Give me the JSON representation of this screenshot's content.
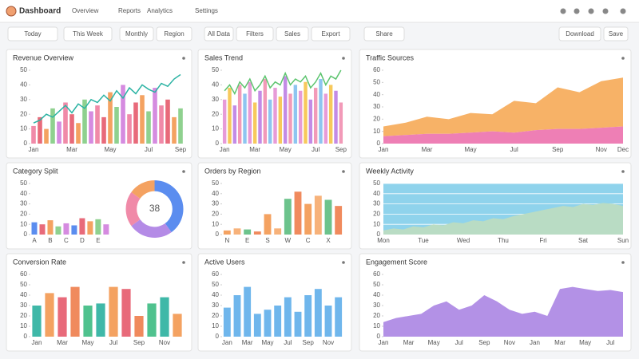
{
  "header": {
    "logo": "Dashboard",
    "nav": [
      "Overview",
      "Reports",
      "Analytics",
      "Settings"
    ]
  },
  "toolbar": {
    "buttons": [
      "Today",
      "This Week",
      "Monthly",
      "Region",
      "All Data",
      "Filters",
      "Sales",
      "Export",
      "Share"
    ],
    "right": [
      "Download",
      "Save"
    ]
  },
  "panels": [
    {
      "title": "Revenue Overview",
      "charts": [
        {
          "type": "bar-line",
          "categories": [
            "Jan",
            null,
            null,
            null,
            null,
            null,
            "Mar",
            null,
            null,
            null,
            null,
            null,
            "May",
            null,
            null,
            null,
            null,
            null,
            "Jul",
            null,
            null,
            null,
            null,
            "Sep"
          ],
          "series": [
            {
              "kind": "bar",
              "palette": [
                "#f08aa8",
                "#e86a7a",
                "#f4a261",
                "#8fd18f",
                "#d58be0"
              ],
              "values": [
                12,
                18,
                10,
                24,
                15,
                28,
                20,
                14,
                30,
                22,
                26,
                18,
                35,
                25,
                40,
                20,
                28,
                33,
                22,
                38,
                26,
                30,
                18,
                24
              ]
            },
            {
              "kind": "line",
              "color": "#2bb3a3",
              "values": [
                14,
                16,
                20,
                18,
                22,
                26,
                21,
                27,
                24,
                30,
                28,
                33,
                29,
                36,
                31,
                38,
                34,
                40,
                37,
                35,
                41,
                39,
                44,
                47
              ]
            }
          ],
          "ylim": [
            0,
            50
          ],
          "yticks": [
            0,
            10,
            20,
            30,
            40,
            50
          ],
          "grid": false
        }
      ]
    },
    {
      "title": "Sales Trend",
      "charts": [
        {
          "type": "bar-line",
          "categories": [
            "Jan",
            null,
            null,
            null,
            null,
            null,
            "Mar",
            null,
            null,
            null,
            null,
            null,
            "May",
            null,
            null,
            null,
            null,
            null,
            "Jul",
            null,
            null,
            null,
            null,
            "Sep"
          ],
          "series": [
            {
              "kind": "bar",
              "palette": [
                "#e79bd8",
                "#f7c95c",
                "#c38be6",
                "#f29ab8",
                "#8ec5f0"
              ],
              "values": [
                30,
                38,
                26,
                40,
                34,
                42,
                28,
                36,
                44,
                30,
                38,
                32,
                46,
                34,
                40,
                36,
                42,
                30,
                38,
                44,
                34,
                40,
                36,
                28
              ]
            },
            {
              "kind": "line",
              "color": "#5cc46e",
              "values": [
                36,
                40,
                34,
                42,
                38,
                44,
                36,
                40,
                46,
                38,
                42,
                40,
                48,
                40,
                44,
                42,
                46,
                38,
                42,
                48,
                40,
                46,
                44,
                50
              ]
            }
          ],
          "ylim": [
            0,
            50
          ],
          "yticks": [
            0,
            10,
            20,
            30,
            40,
            50
          ],
          "grid": false
        }
      ]
    },
    {
      "title": "Traffic Sources",
      "charts": [
        {
          "type": "area",
          "categories": [
            "Jan",
            null,
            "Mar",
            null,
            "May",
            null,
            "Jul",
            null,
            "Sep",
            null,
            "Nov",
            "Dec"
          ],
          "series": [
            {
              "color": "#ee7fb5",
              "values": [
                6,
                7,
                8,
                8,
                9,
                10,
                9,
                11,
                12,
                12,
                13,
                14
              ]
            },
            {
              "color": "#f7b267",
              "values": [
                8,
                10,
                14,
                12,
                16,
                14,
                26,
                22,
                34,
                30,
                38,
                40
              ]
            }
          ],
          "stacked": true,
          "ylim": [
            0,
            60
          ],
          "yticks": [
            0,
            10,
            20,
            30,
            40,
            50,
            60
          ],
          "grid": false
        }
      ]
    },
    {
      "title": "Category Split",
      "charts": [
        {
          "type": "bar",
          "categories": [
            "A",
            null,
            "B",
            null,
            "C",
            null,
            "D",
            null,
            "E",
            null
          ],
          "series": [
            {
              "kind": "bar",
              "palette": [
                "#5b8def",
                "#e86a7a",
                "#f4a261",
                "#8fd18f",
                "#d58be0"
              ],
              "values": [
                12,
                10,
                14,
                8,
                11,
                9,
                16,
                13,
                15,
                10
              ]
            }
          ],
          "ylim": [
            0,
            50
          ],
          "yticks": [
            0,
            10,
            20,
            30,
            40,
            50
          ],
          "grid": false
        },
        {
          "type": "pie",
          "values": [
            40,
            25,
            20,
            15
          ],
          "colors": [
            "#5b8def",
            "#b48be6",
            "#f08aa8",
            "#f4a261"
          ],
          "center_label": "38"
        }
      ]
    },
    {
      "title": "Orders by Region",
      "charts": [
        {
          "type": "bar",
          "categories": [
            "N",
            null,
            "E",
            null,
            "S",
            null,
            "W",
            null,
            "C",
            null,
            "X",
            null
          ],
          "series": [
            {
              "kind": "bar",
              "palette": [
                "#f4a261",
                "#f7b27a",
                "#6cc38c",
                "#f08a5d"
              ],
              "values": [
                4,
                6,
                5,
                3,
                20,
                6,
                35,
                42,
                30,
                38,
                34,
                28
              ]
            }
          ],
          "ylim": [
            0,
            50
          ],
          "yticks": [
            0,
            10,
            20,
            30,
            40,
            50
          ],
          "grid": false
        }
      ]
    },
    {
      "title": "Weekly Activity",
      "charts": [
        {
          "type": "area",
          "categories": [
            "Mon",
            null,
            null,
            null,
            "Tue",
            null,
            null,
            null,
            "Wed",
            null,
            null,
            null,
            "Thu",
            null,
            null,
            null,
            "Fri",
            null,
            null,
            null,
            "Sat",
            null,
            null,
            null,
            "Sun"
          ],
          "series": [
            {
              "color": "#b9dcc4",
              "values": [
                4,
                6,
                5,
                8,
                7,
                10,
                9,
                12,
                11,
                14,
                13,
                16,
                15,
                18,
                20,
                22,
                24,
                26,
                28,
                27,
                30,
                29,
                31,
                30,
                28
              ]
            }
          ],
          "stacked": false,
          "background": "#8fd3ec",
          "ylim": [
            0,
            50
          ],
          "yticks": [
            0,
            10,
            20,
            30,
            40,
            50
          ],
          "grid": true
        }
      ]
    },
    {
      "title": "Conversion Rate",
      "charts": [
        {
          "type": "bar",
          "categories": [
            "Jan",
            null,
            "Mar",
            null,
            "May",
            null,
            "Jul",
            null,
            "Sep",
            null,
            "Nov",
            null
          ],
          "series": [
            {
              "kind": "bar",
              "palette": [
                "#3fb8a8",
                "#f4a261",
                "#e86a7a",
                "#f08a5d",
                "#4fc28e"
              ],
              "values": [
                30,
                42,
                38,
                48,
                30,
                32,
                48,
                46,
                20,
                32,
                38,
                22
              ]
            }
          ],
          "ylim": [
            0,
            60
          ],
          "yticks": [
            0,
            10,
            20,
            30,
            40,
            50,
            60
          ],
          "grid": false
        }
      ]
    },
    {
      "title": "Active Users",
      "charts": [
        {
          "type": "bar",
          "categories": [
            "Jan",
            null,
            "Mar",
            null,
            "May",
            null,
            "Jul",
            null,
            "Sep",
            null,
            "Nov",
            null
          ],
          "series": [
            {
              "kind": "bar",
              "color": "#6fb6ec",
              "values": [
                28,
                40,
                48,
                22,
                26,
                30,
                38,
                24,
                40,
                46,
                30,
                38
              ]
            }
          ],
          "ylim": [
            0,
            60
          ],
          "yticks": [
            0,
            10,
            20,
            30,
            40,
            50,
            60
          ],
          "grid": false
        }
      ]
    },
    {
      "title": "Engagement Score",
      "charts": [
        {
          "type": "area",
          "categories": [
            "Jan",
            null,
            "Mar",
            null,
            "May",
            null,
            "Jul",
            null,
            "Sep",
            null,
            "Nov",
            null,
            "Jan",
            null,
            "Mar",
            null,
            "May",
            null,
            "Jul",
            null
          ],
          "series": [
            {
              "color": "#b391e6",
              "values": [
                14,
                18,
                20,
                22,
                30,
                34,
                26,
                30,
                40,
                34,
                26,
                22,
                24,
                20,
                46,
                48,
                46,
                44,
                45,
                43
              ]
            }
          ],
          "stacked": false,
          "ylim": [
            0,
            60
          ],
          "yticks": [
            0,
            10,
            20,
            30,
            40,
            50,
            60
          ],
          "grid": false
        }
      ]
    }
  ]
}
